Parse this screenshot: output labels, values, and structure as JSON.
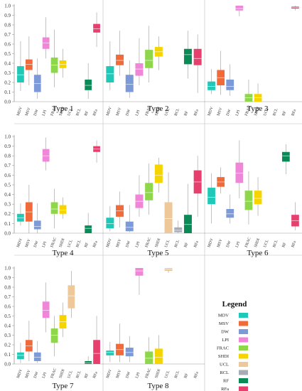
{
  "chart_data": {
    "type": "box",
    "grid": false,
    "ylim": [
      0,
      1
    ],
    "yticks": [
      0,
      0.1,
      0.2,
      0.3,
      0.4,
      0.5,
      0.6,
      0.7,
      0.8,
      0.9,
      1.0
    ],
    "categories": [
      "MDV",
      "MSV",
      "DW",
      "LPI",
      "FRAC",
      "SHDI",
      "UCL",
      "RCL",
      "RF",
      "RFa"
    ],
    "colors": {
      "MDV": "#20c8b8",
      "MSV": "#f06a3a",
      "DW": "#7d9ad8",
      "LPI": "#ef86d8",
      "FRAC": "#8ed64a",
      "SHDI": "#f6d400",
      "UCL": "#efc89a",
      "RCL": "#a8acb4",
      "RF": "#0a8a56",
      "RFa": "#e8406e"
    },
    "legend": {
      "title": "Legend",
      "placement": "bottom-right",
      "items": [
        {
          "label": "MDV",
          "key": "MDV"
        },
        {
          "label": "MSV",
          "key": "MSV"
        },
        {
          "label": "DW",
          "key": "DW"
        },
        {
          "label": "LPI",
          "key": "LPI"
        },
        {
          "label": "FRAC",
          "key": "FRAC"
        },
        {
          "label": "SHDI",
          "key": "SHDI"
        },
        {
          "label": "UCL",
          "key": "UCL"
        },
        {
          "label": "RCL",
          "key": "RCL"
        },
        {
          "label": "RF",
          "key": "RF"
        },
        {
          "label": "RFa",
          "key": "RFa"
        }
      ]
    },
    "panels": [
      {
        "title": "Type 1",
        "boxes": [
          {
            "cat": "MDV",
            "min": 0.11,
            "q1": 0.2,
            "median": 0.28,
            "q3": 0.37,
            "max": 0.63
          },
          {
            "cat": "MSV",
            "min": 0.17,
            "q1": 0.33,
            "median": 0.39,
            "q3": 0.44,
            "max": 0.68
          },
          {
            "cat": "DW",
            "min": 0.03,
            "q1": 0.1,
            "median": 0.19,
            "q3": 0.28,
            "max": 0.45
          },
          {
            "cat": "LPI",
            "min": 0.45,
            "q1": 0.55,
            "median": 0.61,
            "q3": 0.67,
            "max": 0.88
          },
          {
            "cat": "FRAC",
            "min": 0.15,
            "q1": 0.3,
            "median": 0.38,
            "q3": 0.46,
            "max": 0.75
          },
          {
            "cat": "SHDI",
            "min": 0.25,
            "q1": 0.35,
            "median": 0.39,
            "q3": 0.43,
            "max": 0.55
          },
          {
            "cat": "UCL",
            "min": 0.0,
            "q1": 0.0,
            "median": 0.0,
            "q3": 0.0,
            "max": 0.0
          },
          {
            "cat": "RCL",
            "min": 0.0,
            "q1": 0.0,
            "median": 0.0,
            "q3": 0.0,
            "max": 0.0
          },
          {
            "cat": "RF",
            "min": 0.03,
            "q1": 0.12,
            "median": 0.17,
            "q3": 0.23,
            "max": 0.4
          },
          {
            "cat": "RFa",
            "min": 0.57,
            "q1": 0.72,
            "median": 0.76,
            "q3": 0.81,
            "max": 0.93
          }
        ]
      },
      {
        "title": "Type 2",
        "boxes": [
          {
            "cat": "MDV",
            "min": 0.12,
            "q1": 0.2,
            "median": 0.29,
            "q3": 0.37,
            "max": 0.63
          },
          {
            "cat": "MSV",
            "min": 0.27,
            "q1": 0.38,
            "median": 0.43,
            "q3": 0.49,
            "max": 0.74
          },
          {
            "cat": "DW",
            "min": 0.04,
            "q1": 0.1,
            "median": 0.18,
            "q3": 0.28,
            "max": 0.43
          },
          {
            "cat": "LPI",
            "min": 0.17,
            "q1": 0.27,
            "median": 0.34,
            "q3": 0.4,
            "max": 0.66
          },
          {
            "cat": "FRAC",
            "min": 0.2,
            "q1": 0.35,
            "median": 0.43,
            "q3": 0.54,
            "max": 0.79
          },
          {
            "cat": "SHDI",
            "min": 0.33,
            "q1": 0.47,
            "median": 0.52,
            "q3": 0.57,
            "max": 0.68
          },
          {
            "cat": "UCL",
            "min": 0.0,
            "q1": 0.0,
            "median": 0.0,
            "q3": 0.0,
            "max": 0.0
          },
          {
            "cat": "RCL",
            "min": 0.0,
            "q1": 0.0,
            "median": 0.0,
            "q3": 0.0,
            "max": 0.0
          },
          {
            "cat": "RF",
            "min": 0.24,
            "q1": 0.39,
            "median": 0.49,
            "q3": 0.55,
            "max": 0.74
          },
          {
            "cat": "RFa",
            "min": 0.09,
            "q1": 0.38,
            "median": 0.45,
            "q3": 0.55,
            "max": 0.7
          }
        ]
      },
      {
        "title": "Type 3",
        "boxes": [
          {
            "cat": "MDV",
            "min": 0.08,
            "q1": 0.12,
            "median": 0.16,
            "q3": 0.21,
            "max": 0.34
          },
          {
            "cat": "MSV",
            "min": 0.07,
            "q1": 0.17,
            "median": 0.25,
            "q3": 0.33,
            "max": 0.53
          },
          {
            "cat": "DW",
            "min": 0.06,
            "q1": 0.12,
            "median": 0.16,
            "q3": 0.23,
            "max": 0.39
          },
          {
            "cat": "LPI",
            "min": 0.89,
            "q1": 0.95,
            "median": 0.97,
            "q3": 1.0,
            "max": 1.0
          },
          {
            "cat": "FRAC",
            "min": 0.0,
            "q1": 0.0,
            "median": 0.04,
            "q3": 0.08,
            "max": 0.23
          },
          {
            "cat": "SHDI",
            "min": 0.0,
            "q1": 0.0,
            "median": 0.04,
            "q3": 0.08,
            "max": 0.19
          },
          {
            "cat": "UCL",
            "min": 0.0,
            "q1": 0.0,
            "median": 0.0,
            "q3": 0.0,
            "max": 0.0
          },
          {
            "cat": "RCL",
            "min": 0.0,
            "q1": 0.0,
            "median": 0.0,
            "q3": 0.0,
            "max": 0.0
          },
          {
            "cat": "RF",
            "min": 0.0,
            "q1": 0.0,
            "median": 0.0,
            "q3": 0.0,
            "max": 0.0
          },
          {
            "cat": "RFa",
            "min": 0.95,
            "q1": 0.97,
            "median": 0.98,
            "q3": 0.99,
            "max": 1.0
          }
        ]
      },
      {
        "title": "Type 4",
        "boxes": [
          {
            "cat": "MDV",
            "min": 0.08,
            "q1": 0.12,
            "median": 0.16,
            "q3": 0.2,
            "max": 0.31
          },
          {
            "cat": "MSV",
            "min": 0.0,
            "q1": 0.12,
            "median": 0.22,
            "q3": 0.32,
            "max": 0.5
          },
          {
            "cat": "DW",
            "min": 0.0,
            "q1": 0.04,
            "median": 0.07,
            "q3": 0.13,
            "max": 0.31
          },
          {
            "cat": "LPI",
            "min": 0.65,
            "q1": 0.74,
            "median": 0.8,
            "q3": 0.87,
            "max": 0.99
          },
          {
            "cat": "FRAC",
            "min": 0.05,
            "q1": 0.2,
            "median": 0.25,
            "q3": 0.32,
            "max": 0.46
          },
          {
            "cat": "SHDI",
            "min": 0.15,
            "q1": 0.2,
            "median": 0.24,
            "q3": 0.29,
            "max": 0.37
          },
          {
            "cat": "UCL",
            "min": 0.0,
            "q1": 0.0,
            "median": 0.0,
            "q3": 0.0,
            "max": 0.0
          },
          {
            "cat": "RCL",
            "min": 0.0,
            "q1": 0.0,
            "median": 0.0,
            "q3": 0.0,
            "max": 0.0
          },
          {
            "cat": "RF",
            "min": 0.0,
            "q1": 0.0,
            "median": 0.05,
            "q3": 0.08,
            "max": 0.21
          },
          {
            "cat": "RFa",
            "min": 0.73,
            "q1": 0.84,
            "median": 0.87,
            "q3": 0.9,
            "max": 0.96
          }
        ]
      },
      {
        "title": "Type 5",
        "boxes": [
          {
            "cat": "MDV",
            "min": 0.02,
            "q1": 0.05,
            "median": 0.1,
            "q3": 0.16,
            "max": 0.28
          },
          {
            "cat": "MSV",
            "min": 0.06,
            "q1": 0.17,
            "median": 0.23,
            "q3": 0.29,
            "max": 0.43
          },
          {
            "cat": "DW",
            "min": 0.01,
            "q1": 0.02,
            "median": 0.06,
            "q3": 0.12,
            "max": 0.29
          },
          {
            "cat": "LPI",
            "min": 0.17,
            "q1": 0.26,
            "median": 0.33,
            "q3": 0.4,
            "max": 0.6
          },
          {
            "cat": "FRAC",
            "min": 0.19,
            "q1": 0.34,
            "median": 0.42,
            "q3": 0.52,
            "max": 0.72
          },
          {
            "cat": "SHDI",
            "min": 0.42,
            "q1": 0.52,
            "median": 0.6,
            "q3": 0.71,
            "max": 0.78
          },
          {
            "cat": "UCL",
            "min": 0.0,
            "q1": 0.0,
            "median": 0.15,
            "q3": 0.32,
            "max": 0.63
          },
          {
            "cat": "RCL",
            "min": 0.0,
            "q1": 0.01,
            "median": 0.03,
            "q3": 0.06,
            "max": 0.13
          },
          {
            "cat": "RF",
            "min": 0.0,
            "q1": 0.0,
            "median": 0.09,
            "q3": 0.19,
            "max": 0.51
          },
          {
            "cat": "RFa",
            "min": 0.17,
            "q1": 0.41,
            "median": 0.53,
            "q3": 0.65,
            "max": 0.8
          }
        ]
      },
      {
        "title": "Type 6",
        "boxes": [
          {
            "cat": "MDV",
            "min": 0.1,
            "q1": 0.3,
            "median": 0.37,
            "q3": 0.47,
            "max": 0.62
          },
          {
            "cat": "MSV",
            "min": 0.41,
            "q1": 0.48,
            "median": 0.53,
            "q3": 0.58,
            "max": 0.68
          },
          {
            "cat": "DW",
            "min": 0.1,
            "q1": 0.16,
            "median": 0.2,
            "q3": 0.25,
            "max": 0.4
          },
          {
            "cat": "LPI",
            "min": 0.36,
            "q1": 0.52,
            "median": 0.62,
            "q3": 0.73,
            "max": 0.96
          },
          {
            "cat": "FRAC",
            "min": 0.09,
            "q1": 0.24,
            "median": 0.33,
            "q3": 0.44,
            "max": 0.64
          },
          {
            "cat": "SHDI",
            "min": 0.18,
            "q1": 0.3,
            "median": 0.36,
            "q3": 0.44,
            "max": 0.58
          },
          {
            "cat": "UCL",
            "min": 0.0,
            "q1": 0.0,
            "median": 0.0,
            "q3": 0.0,
            "max": 0.0
          },
          {
            "cat": "RCL",
            "min": 0.0,
            "q1": 0.0,
            "median": 0.0,
            "q3": 0.0,
            "max": 0.0
          },
          {
            "cat": "RF",
            "min": 0.61,
            "q1": 0.74,
            "median": 0.8,
            "q3": 0.84,
            "max": 0.92
          },
          {
            "cat": "RFa",
            "min": 0.03,
            "q1": 0.07,
            "median": 0.13,
            "q3": 0.19,
            "max": 0.32
          }
        ]
      },
      {
        "title": "Type 7",
        "boxes": [
          {
            "cat": "MDV",
            "min": 0.01,
            "q1": 0.05,
            "median": 0.09,
            "q3": 0.12,
            "max": 0.22
          },
          {
            "cat": "MSV",
            "min": 0.03,
            "q1": 0.13,
            "median": 0.19,
            "q3": 0.25,
            "max": 0.45
          },
          {
            "cat": "DW",
            "min": 0.01,
            "q1": 0.03,
            "median": 0.07,
            "q3": 0.12,
            "max": 0.24
          },
          {
            "cat": "LPI",
            "min": 0.33,
            "q1": 0.48,
            "median": 0.56,
            "q3": 0.65,
            "max": 0.85
          },
          {
            "cat": "FRAC",
            "min": 0.08,
            "q1": 0.22,
            "median": 0.3,
            "q3": 0.37,
            "max": 0.5
          },
          {
            "cat": "SHDI",
            "min": 0.28,
            "q1": 0.37,
            "median": 0.44,
            "q3": 0.51,
            "max": 0.64
          },
          {
            "cat": "UCL",
            "min": 0.48,
            "q1": 0.58,
            "median": 0.71,
            "q3": 0.82,
            "max": 0.97
          },
          {
            "cat": "RCL",
            "min": 0.0,
            "q1": 0.0,
            "median": 0.0,
            "q3": 0.0,
            "max": 0.0
          },
          {
            "cat": "RF",
            "min": 0.0,
            "q1": 0.0,
            "median": 0.01,
            "q3": 0.03,
            "max": 0.08
          },
          {
            "cat": "RFa",
            "min": 0.0,
            "q1": 0.0,
            "median": 0.11,
            "q3": 0.25,
            "max": 0.5
          }
        ]
      },
      {
        "title": "Type 8",
        "boxes": [
          {
            "cat": "MDV",
            "min": 0.02,
            "q1": 0.09,
            "median": 0.12,
            "q3": 0.14,
            "max": 0.23
          },
          {
            "cat": "MSV",
            "min": 0.02,
            "q1": 0.09,
            "median": 0.15,
            "q3": 0.21,
            "max": 0.42
          },
          {
            "cat": "DW",
            "min": 0.02,
            "q1": 0.08,
            "median": 0.12,
            "q3": 0.17,
            "max": 0.29
          },
          {
            "cat": "LPI",
            "min": 0.72,
            "q1": 0.92,
            "median": 0.97,
            "q3": 1.0,
            "max": 1.0
          },
          {
            "cat": "FRAC",
            "min": 0.0,
            "q1": 0.0,
            "median": 0.06,
            "q3": 0.13,
            "max": 0.28
          },
          {
            "cat": "SHDI",
            "min": 0.0,
            "q1": 0.0,
            "median": 0.07,
            "q3": 0.16,
            "max": 0.3
          },
          {
            "cat": "UCL",
            "min": 0.95,
            "q1": 0.97,
            "median": 0.99,
            "q3": 1.0,
            "max": 1.0
          },
          {
            "cat": "RCL",
            "min": 0.0,
            "q1": 0.0,
            "median": 0.0,
            "q3": 0.0,
            "max": 0.0
          },
          {
            "cat": "RF",
            "min": 0.0,
            "q1": 0.0,
            "median": 0.0,
            "q3": 0.0,
            "max": 0.0
          },
          {
            "cat": "RFa",
            "min": 0.0,
            "q1": 0.0,
            "median": 0.0,
            "q3": 0.0,
            "max": 0.0
          }
        ]
      }
    ]
  }
}
